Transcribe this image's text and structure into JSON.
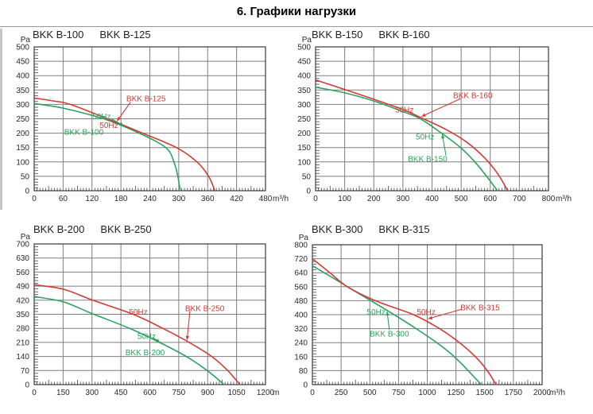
{
  "page": {
    "title": "6. Графики нагрузки"
  },
  "colors": {
    "green": "#2ba35f",
    "red": "#d23a34",
    "grid": "#7e7e7e",
    "border": "#3a3a3a",
    "text": "#2a2a2a"
  },
  "chart_data": [
    {
      "type": "line",
      "models": [
        "BKK B-100",
        "BKK B-125"
      ],
      "ylabel": "Pa",
      "x_unit": "m³/h",
      "xlim": [
        0,
        480
      ],
      "ylim": [
        0,
        500
      ],
      "x_ticks": [
        0,
        60,
        120,
        180,
        240,
        300,
        360,
        420,
        480
      ],
      "y_ticks": [
        0,
        50,
        100,
        150,
        200,
        250,
        300,
        350,
        400,
        450,
        500
      ],
      "grid": true,
      "series": [
        {
          "name": "BKK B-100",
          "freq": "50Hz",
          "color": "#2ba35f",
          "points": [
            [
              0,
              303
            ],
            [
              60,
              287
            ],
            [
              144,
              250
            ],
            [
              218,
              200
            ],
            [
              273,
              150
            ],
            [
              290,
              100
            ],
            [
              298,
              50
            ],
            [
              303,
              0
            ]
          ]
        },
        {
          "name": "BKK B-125",
          "freq": "50Hz",
          "color": "#d23a34",
          "points": [
            [
              0,
              322
            ],
            [
              40,
              312
            ],
            [
              75,
              300
            ],
            [
              152,
              250
            ],
            [
              225,
              200
            ],
            [
              295,
              150
            ],
            [
              338,
              100
            ],
            [
              362,
              50
            ],
            [
              375,
              0
            ]
          ]
        }
      ],
      "annotations": [
        {
          "text": "50Hz",
          "color": "#2ba35f",
          "x": 140,
          "y": 258
        },
        {
          "text": "BKK B-100",
          "color": "#2ba35f",
          "x": 103,
          "y": 205
        },
        {
          "text": "50Hz",
          "color": "#d23a34",
          "x": 155,
          "y": 228
        },
        {
          "text": "BKK B-125",
          "color": "#d23a34",
          "x": 232,
          "y": 320
        }
      ],
      "leaders": [
        {
          "color": "#2ba35f",
          "from": [
            160,
            250
          ],
          "to": [
            186,
            226
          ]
        },
        {
          "color": "#d23a34",
          "from": [
            200,
            308
          ],
          "to": [
            172,
            242
          ]
        }
      ]
    },
    {
      "type": "line",
      "models": [
        "BKK B-150",
        "BKK B-160"
      ],
      "ylabel": "Pa",
      "x_unit": "m³/h",
      "xlim": [
        0,
        800
      ],
      "ylim": [
        0,
        500
      ],
      "x_ticks": [
        0,
        100,
        200,
        300,
        400,
        500,
        600,
        700,
        800
      ],
      "y_ticks": [
        0,
        50,
        100,
        150,
        200,
        250,
        300,
        350,
        400,
        450,
        500
      ],
      "grid": true,
      "series": [
        {
          "name": "BKK B-150",
          "freq": "50Hz",
          "color": "#2ba35f",
          "points": [
            [
              0,
              360
            ],
            [
              100,
              340
            ],
            [
              200,
              312
            ],
            [
              300,
              275
            ],
            [
              360,
              250
            ],
            [
              430,
              202
            ],
            [
              500,
              148
            ],
            [
              560,
              85
            ],
            [
              625,
              0
            ]
          ]
        },
        {
          "name": "BKK B-160",
          "freq": "50Hz",
          "color": "#d23a34",
          "points": [
            [
              0,
              385
            ],
            [
              100,
              352
            ],
            [
              200,
              318
            ],
            [
              300,
              282
            ],
            [
              360,
              255
            ],
            [
              450,
              212
            ],
            [
              520,
              168
            ],
            [
              580,
              115
            ],
            [
              625,
              60
            ],
            [
              660,
              0
            ]
          ]
        }
      ],
      "annotations": [
        {
          "text": "50Hz",
          "color": "#d23a34",
          "x": 305,
          "y": 282
        },
        {
          "text": "BKK B-160",
          "color": "#d23a34",
          "x": 540,
          "y": 332
        },
        {
          "text": "50Hz",
          "color": "#2ba35f",
          "x": 376,
          "y": 188
        },
        {
          "text": "BKK B-150",
          "color": "#2ba35f",
          "x": 385,
          "y": 110
        }
      ],
      "leaders": [
        {
          "color": "#d23a34",
          "from": [
            498,
            320
          ],
          "to": [
            364,
            258
          ]
        },
        {
          "color": "#2ba35f",
          "from": [
            448,
            122
          ],
          "to": [
            435,
            196
          ]
        }
      ]
    },
    {
      "type": "line",
      "models": [
        "BKK B-200",
        "BKK B-250"
      ],
      "ylabel": "Pa",
      "x_unit": "m",
      "xlim": [
        0,
        1200
      ],
      "ylim": [
        0,
        700
      ],
      "x_ticks": [
        0,
        150,
        300,
        450,
        600,
        750,
        900,
        1050,
        1200
      ],
      "y_ticks": [
        0,
        70,
        140,
        210,
        280,
        350,
        420,
        490,
        560,
        630,
        700
      ],
      "grid": true,
      "series": [
        {
          "name": "BKK B-200",
          "freq": "50Hz",
          "color": "#2ba35f",
          "points": [
            [
              0,
              438
            ],
            [
              150,
              412
            ],
            [
              304,
              352
            ],
            [
              492,
              281
            ],
            [
              650,
              210
            ],
            [
              792,
              138
            ],
            [
              900,
              68
            ],
            [
              985,
              0
            ]
          ]
        },
        {
          "name": "BKK B-250",
          "freq": "50Hz",
          "color": "#d23a34",
          "points": [
            [
              0,
              497
            ],
            [
              150,
              475
            ],
            [
              304,
              420
            ],
            [
              513,
              350
            ],
            [
              667,
              280
            ],
            [
              804,
              210
            ],
            [
              921,
              140
            ],
            [
              1004,
              70
            ],
            [
              1067,
              0
            ]
          ]
        }
      ],
      "annotations": [
        {
          "text": "50Hz",
          "color": "#d23a34",
          "x": 540,
          "y": 362
        },
        {
          "text": "BKK B-250",
          "color": "#d23a34",
          "x": 885,
          "y": 380
        },
        {
          "text": "50Hz",
          "color": "#2ba35f",
          "x": 583,
          "y": 242
        },
        {
          "text": "BKK B-200",
          "color": "#2ba35f",
          "x": 575,
          "y": 160
        }
      ],
      "leaders": [
        {
          "color": "#d23a34",
          "from": [
            808,
            366
          ],
          "to": [
            793,
            222
          ]
        },
        {
          "color": "#2ba35f",
          "from": [
            615,
            235
          ],
          "to": [
            653,
            210
          ]
        }
      ]
    },
    {
      "type": "line",
      "models": [
        "BKK B-300",
        "BKK B-315"
      ],
      "ylabel": "Pa",
      "x_unit": "m³/h",
      "xlim": [
        0,
        2000
      ],
      "ylim": [
        0,
        800
      ],
      "x_ticks": [
        0,
        250,
        500,
        750,
        1000,
        1250,
        1500,
        1750,
        2000
      ],
      "y_ticks": [
        0,
        80,
        160,
        240,
        320,
        400,
        480,
        560,
        640,
        720,
        800
      ],
      "grid": true,
      "series": [
        {
          "name": "BKK B-300",
          "freq": "50Hz",
          "color": "#2ba35f",
          "points": [
            [
              0,
              680
            ],
            [
              180,
              610
            ],
            [
              360,
              538
            ],
            [
              540,
              468
            ],
            [
              706,
              402
            ],
            [
              880,
              330
            ],
            [
              1050,
              255
            ],
            [
              1200,
              180
            ],
            [
              1320,
              105
            ],
            [
              1470,
              0
            ]
          ]
        },
        {
          "name": "BKK B-315",
          "freq": "50Hz",
          "color": "#d23a34",
          "points": [
            [
              0,
              720
            ],
            [
              152,
              640
            ],
            [
              304,
              560
            ],
            [
              547,
              480
            ],
            [
              880,
              400
            ],
            [
              1107,
              320
            ],
            [
              1280,
              240
            ],
            [
              1419,
              160
            ],
            [
              1522,
              80
            ],
            [
              1600,
              0
            ]
          ]
        }
      ],
      "annotations": [
        {
          "text": "50Hz",
          "color": "#2ba35f",
          "x": 555,
          "y": 415
        },
        {
          "text": "BKK B-300",
          "color": "#2ba35f",
          "x": 670,
          "y": 292
        },
        {
          "text": "50Hz",
          "color": "#d23a34",
          "x": 990,
          "y": 415
        },
        {
          "text": "BKK B-315",
          "color": "#d23a34",
          "x": 1460,
          "y": 442
        }
      ],
      "leaders": [
        {
          "color": "#2ba35f",
          "from": [
            670,
            314
          ],
          "to": [
            650,
            418
          ]
        },
        {
          "color": "#d23a34",
          "from": [
            1295,
            430
          ],
          "to": [
            1008,
            376
          ]
        }
      ]
    }
  ]
}
